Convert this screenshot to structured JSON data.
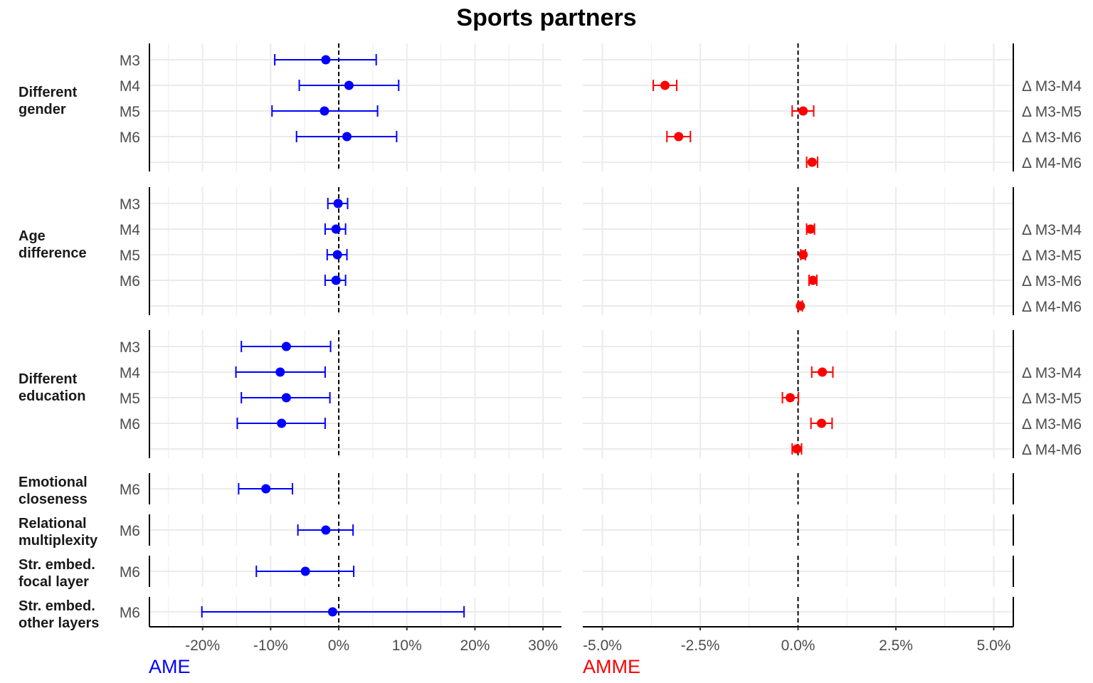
{
  "chart_data": {
    "type": "forest",
    "title": "Sports partners",
    "colors": {
      "ame": "#0000ff",
      "amme": "#ff0000",
      "grid": "#ebebeb",
      "axis": "#000000"
    },
    "left_panel": {
      "xlabel": "AME",
      "xlim": [
        -0.278,
        0.327
      ],
      "ticks": [
        -0.2,
        -0.1,
        0.0,
        0.1,
        0.2,
        0.3
      ],
      "tick_labels": [
        "-20%",
        "-10%",
        "0%",
        "10%",
        "20%",
        "30%"
      ],
      "reference_line": 0
    },
    "right_panel": {
      "xlabel": "AMME",
      "xlim": [
        -0.055,
        0.055
      ],
      "ticks": [
        -0.05,
        -0.025,
        0.0,
        0.025,
        0.05
      ],
      "tick_labels": [
        "-5.0%",
        "-2.5%",
        "0.0%",
        "2.5%",
        "5.0%"
      ],
      "reference_line": 0
    },
    "groups": [
      {
        "label": [
          "Different",
          "gender"
        ],
        "ame": [
          {
            "model": "M3",
            "est": -0.019,
            "lo": -0.094,
            "hi": 0.055
          },
          {
            "model": "M4",
            "est": 0.015,
            "lo": -0.058,
            "hi": 0.088
          },
          {
            "model": "M5",
            "est": -0.021,
            "lo": -0.098,
            "hi": 0.057
          },
          {
            "model": "M6",
            "est": 0.012,
            "lo": -0.062,
            "hi": 0.085
          }
        ],
        "amme": [
          {
            "label": "Δ M3-M4",
            "est": -0.034,
            "lo": -0.037,
            "hi": -0.031
          },
          {
            "label": "Δ M3-M5",
            "est": 0.0013,
            "lo": -0.0015,
            "hi": 0.004
          },
          {
            "label": "Δ M3-M6",
            "est": -0.0305,
            "lo": -0.0335,
            "hi": -0.0275
          },
          {
            "label": "Δ M4-M6",
            "est": 0.0036,
            "lo": 0.0022,
            "hi": 0.005
          }
        ]
      },
      {
        "label": [
          "Age",
          "difference"
        ],
        "ame": [
          {
            "model": "M3",
            "est": -0.001,
            "lo": -0.016,
            "hi": 0.013
          },
          {
            "model": "M4",
            "est": -0.004,
            "lo": -0.02,
            "hi": 0.01
          },
          {
            "model": "M5",
            "est": -0.002,
            "lo": -0.017,
            "hi": 0.012
          },
          {
            "model": "M6",
            "est": -0.004,
            "lo": -0.02,
            "hi": 0.01
          }
        ],
        "amme": [
          {
            "label": "Δ M3-M4",
            "est": 0.0032,
            "lo": 0.0022,
            "hi": 0.0042
          },
          {
            "label": "Δ M3-M5",
            "est": 0.0013,
            "lo": 0.0007,
            "hi": 0.0019
          },
          {
            "label": "Δ M3-M6",
            "est": 0.0038,
            "lo": 0.0028,
            "hi": 0.0048
          },
          {
            "label": "Δ M4-M6",
            "est": 0.0006,
            "lo": 0.0001,
            "hi": 0.0011
          }
        ]
      },
      {
        "label": [
          "Different",
          "education"
        ],
        "ame": [
          {
            "model": "M3",
            "est": -0.077,
            "lo": -0.143,
            "hi": -0.012
          },
          {
            "model": "M4",
            "est": -0.086,
            "lo": -0.151,
            "hi": -0.02
          },
          {
            "model": "M5",
            "est": -0.077,
            "lo": -0.143,
            "hi": -0.013
          },
          {
            "model": "M6",
            "est": -0.084,
            "lo": -0.149,
            "hi": -0.02
          }
        ],
        "amme": [
          {
            "label": "Δ M3-M4",
            "est": 0.0062,
            "lo": 0.0035,
            "hi": 0.0089
          },
          {
            "label": "Δ M3-M5",
            "est": -0.002,
            "lo": -0.004,
            "hi": 0.0001
          },
          {
            "label": "Δ M3-M6",
            "est": 0.006,
            "lo": 0.0033,
            "hi": 0.0087
          },
          {
            "label": "Δ M4-M6",
            "est": -0.0003,
            "lo": -0.0015,
            "hi": 0.0009
          }
        ]
      },
      {
        "label": [
          "Emotional",
          "closeness"
        ],
        "ame": [
          {
            "model": "M6",
            "est": -0.107,
            "lo": -0.147,
            "hi": -0.068
          }
        ],
        "amme": []
      },
      {
        "label": [
          "Relational",
          "multiplexity"
        ],
        "ame": [
          {
            "model": "M6",
            "est": -0.019,
            "lo": -0.06,
            "hi": 0.021
          }
        ],
        "amme": []
      },
      {
        "label": [
          "Str. embed.",
          "focal layer"
        ],
        "ame": [
          {
            "model": "M6",
            "est": -0.049,
            "lo": -0.121,
            "hi": 0.022
          }
        ],
        "amme": []
      },
      {
        "label": [
          "Str. embed.",
          "other layers"
        ],
        "ame": [
          {
            "model": "M6",
            "est": -0.009,
            "lo": -0.201,
            "hi": 0.184
          }
        ],
        "amme": []
      }
    ]
  }
}
